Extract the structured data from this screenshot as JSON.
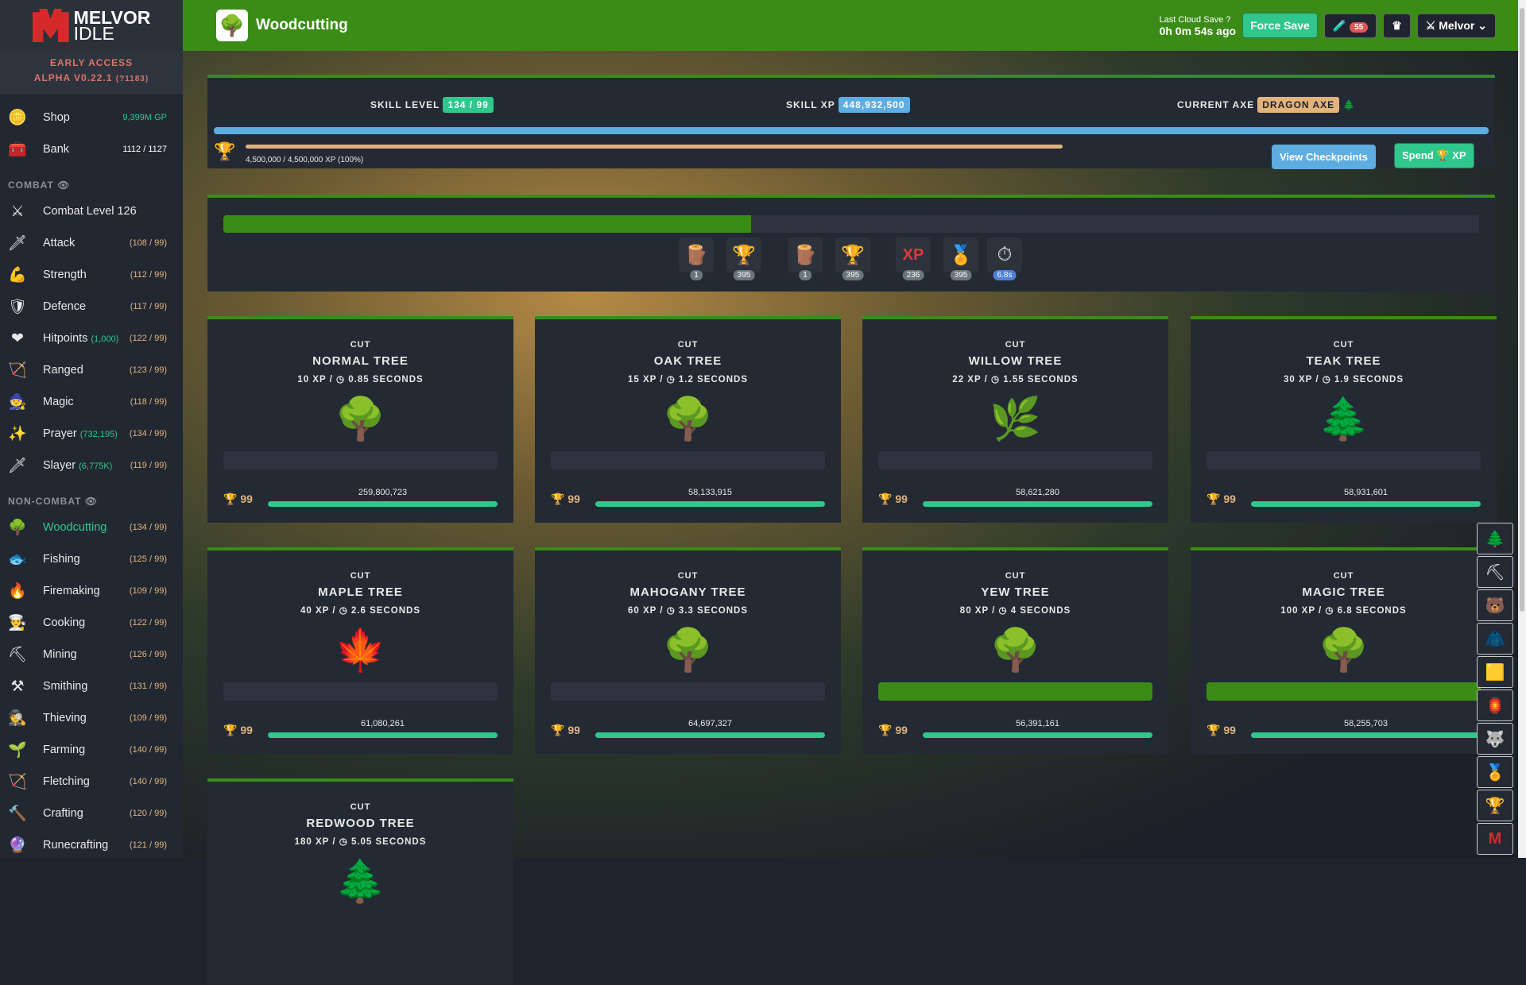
{
  "sidebar": {
    "logo": {
      "line1": "MELVOR",
      "line2": "IDLE"
    },
    "early_access": "EARLY ACCESS",
    "version": "ALPHA V0.22.1",
    "build": "(?1183)",
    "shop": {
      "label": "Shop",
      "value": "9,399M GP",
      "icon": "coin-icon"
    },
    "bank": {
      "label": "Bank",
      "value": "1112 / 1127",
      "icon": "chest-icon"
    },
    "combat_header": "COMBAT",
    "combat": [
      {
        "label": "Combat Level 126",
        "level": "",
        "icon": "⚔"
      },
      {
        "label": "Attack",
        "level": "(108 / 99)",
        "icon": "🗡"
      },
      {
        "label": "Strength",
        "level": "(112 / 99)",
        "icon": "💪"
      },
      {
        "label": "Defence",
        "level": "(117 / 99)",
        "icon": "🛡"
      },
      {
        "label": "Hitpoints",
        "extra": "(1,000)",
        "level": "(122 / 99)",
        "icon": "❤"
      },
      {
        "label": "Ranged",
        "level": "(123 / 99)",
        "icon": "🏹"
      },
      {
        "label": "Magic",
        "level": "(118 / 99)",
        "icon": "🧙"
      },
      {
        "label": "Prayer",
        "extra": "(732,195)",
        "level": "(134 / 99)",
        "icon": "✨"
      },
      {
        "label": "Slayer",
        "extra": "(6,775K)",
        "level": "(119 / 99)",
        "icon": "🗡"
      }
    ],
    "noncombat_header": "NON-COMBAT",
    "noncombat": [
      {
        "label": "Woodcutting",
        "level": "(134 / 99)",
        "icon": "🌳",
        "active": true
      },
      {
        "label": "Fishing",
        "level": "(125 / 99)",
        "icon": "🐟"
      },
      {
        "label": "Firemaking",
        "level": "(109 / 99)",
        "icon": "🔥"
      },
      {
        "label": "Cooking",
        "level": "(122 / 99)",
        "icon": "👨‍🍳"
      },
      {
        "label": "Mining",
        "level": "(126 / 99)",
        "icon": "⛏"
      },
      {
        "label": "Smithing",
        "level": "(131 / 99)",
        "icon": "⚒"
      },
      {
        "label": "Thieving",
        "level": "(109 / 99)",
        "icon": "🕵"
      },
      {
        "label": "Farming",
        "level": "(140 / 99)",
        "icon": "🌱"
      },
      {
        "label": "Fletching",
        "level": "(140 / 99)",
        "icon": "🏹"
      },
      {
        "label": "Crafting",
        "level": "(120 / 99)",
        "icon": "🔨"
      },
      {
        "label": "Runecrafting",
        "level": "(121 / 99)",
        "icon": "🔮"
      }
    ]
  },
  "header": {
    "title": "Woodcutting",
    "last_save_label": "Last Cloud Save",
    "last_save_value": "0h 0m 54s ago",
    "force_save": "Force Save",
    "potion_count": "55",
    "user": "Melvor"
  },
  "skill": {
    "level_label": "SKILL LEVEL",
    "level": "134 / 99",
    "xp_label": "SKILL XP",
    "xp": "448,932,500",
    "axe_label": "CURRENT AXE",
    "axe": "DRAGON AXE",
    "xp_progress": 1.0,
    "pool_text": "4,500,000 / 4,500,000 XP (100%)",
    "pool_progress": 1.0,
    "view_checkpoints": "View Checkpoints",
    "spend": "Spend",
    "spend_xp": "XP"
  },
  "action": {
    "progress": 0.42,
    "icons": [
      {
        "icon": "🪵",
        "count": "1"
      },
      {
        "icon": "🏆",
        "count": "395"
      },
      {
        "icon": "🪵",
        "count": "1"
      },
      {
        "icon": "🏆",
        "count": "395"
      },
      {
        "icon": "XP",
        "count": "236"
      },
      {
        "icon": "🏅",
        "count": "395"
      },
      {
        "icon": "⏱",
        "count": "6.8s"
      }
    ]
  },
  "trees": [
    {
      "cut": "CUT",
      "name": "NORMAL TREE",
      "xp": "10 XP / ◷ 0.85 SECONDS",
      "icon": "🌳",
      "mastery": "99",
      "mastery_xp": "259,800,723",
      "active": false
    },
    {
      "cut": "CUT",
      "name": "OAK TREE",
      "xp": "15 XP / ◷ 1.2 SECONDS",
      "icon": "🌳",
      "mastery": "99",
      "mastery_xp": "58,133,915",
      "active": false
    },
    {
      "cut": "CUT",
      "name": "WILLOW TREE",
      "xp": "22 XP / ◷ 1.55 SECONDS",
      "icon": "🌿",
      "mastery": "99",
      "mastery_xp": "58,621,280",
      "active": false
    },
    {
      "cut": "CUT",
      "name": "TEAK TREE",
      "xp": "30 XP / ◷ 1.9 SECONDS",
      "icon": "🌲",
      "mastery": "99",
      "mastery_xp": "58,931,601",
      "active": false
    },
    {
      "cut": "CUT",
      "name": "MAPLE TREE",
      "xp": "40 XP / ◷ 2.6 SECONDS",
      "icon": "🍁",
      "mastery": "99",
      "mastery_xp": "61,080,261",
      "active": false
    },
    {
      "cut": "CUT",
      "name": "MAHOGANY TREE",
      "xp": "60 XP / ◷ 3.3 SECONDS",
      "icon": "🌳",
      "mastery": "99",
      "mastery_xp": "64,697,327",
      "active": false
    },
    {
      "cut": "CUT",
      "name": "YEW TREE",
      "xp": "80 XP / ◷ 4 SECONDS",
      "icon": "🌳",
      "mastery": "99",
      "mastery_xp": "56,391,161",
      "active": true
    },
    {
      "cut": "CUT",
      "name": "MAGIC TREE",
      "xp": "100 XP / ◷ 6.8 SECONDS",
      "icon": "🌳",
      "mastery": "99",
      "mastery_xp": "58,255,703",
      "active": true
    },
    {
      "cut": "CUT",
      "name": "REDWOOD TREE",
      "xp": "180 XP / ◷ 5.05 SECONDS",
      "icon": "🌲",
      "mastery": "",
      "mastery_xp": "",
      "active": false
    }
  ],
  "right_nav": [
    "🌲",
    "⛏",
    "🐻",
    "🧥",
    "🟨",
    "🏮",
    "🐺",
    "🏅",
    "🏆",
    "M"
  ],
  "colors": {
    "header": "#3b8c17",
    "teal": "#30c78d",
    "blue": "#5dade2",
    "tan": "#e2b37d"
  }
}
